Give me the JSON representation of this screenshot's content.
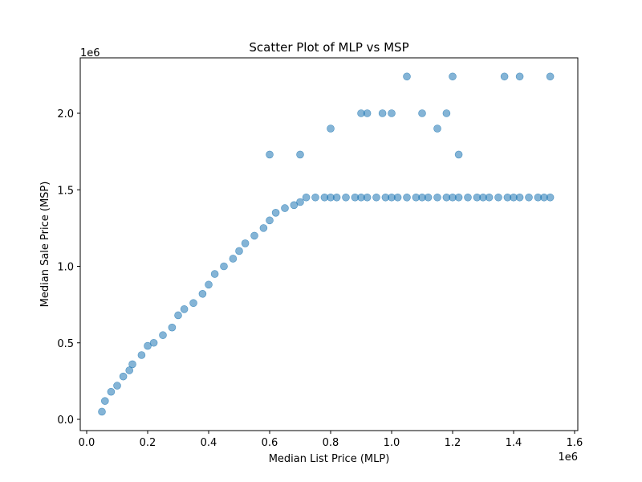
{
  "chart_data": {
    "type": "scatter",
    "title": "Scatter Plot of MLP vs MSP",
    "xlabel": "Median List Price (MLP)",
    "ylabel": "Median Sale Price (MSP)",
    "x_offset_label": "1e6",
    "y_offset_label": "1e6",
    "xlim": [
      0,
      1.6
    ],
    "ylim": [
      0,
      2.25
    ],
    "xticks": [
      0.0,
      0.2,
      0.4,
      0.6,
      0.8,
      1.0,
      1.2,
      1.4,
      1.6
    ],
    "xtick_labels": [
      "0.0",
      "0.2",
      "0.4",
      "0.6",
      "0.8",
      "1.0",
      "1.2",
      "1.4",
      "1.6"
    ],
    "yticks": [
      0.0,
      0.5,
      1.0,
      1.5,
      2.0
    ],
    "ytick_labels": [
      "0.0",
      "0.5",
      "1.0",
      "1.5",
      "2.0"
    ],
    "grid": false,
    "marker_color": "#1f77b4",
    "marker_alpha": 0.55,
    "series": [
      {
        "x": [
          0.05,
          0.06,
          0.08,
          0.1,
          0.12,
          0.14,
          0.15,
          0.18,
          0.2,
          0.22,
          0.25,
          0.28,
          0.3,
          0.32,
          0.35,
          0.38,
          0.4,
          0.42,
          0.45,
          0.48,
          0.5,
          0.52,
          0.55,
          0.58,
          0.6,
          0.62,
          0.65,
          0.68,
          0.7,
          0.72,
          0.75,
          0.78,
          0.8,
          0.82,
          0.85,
          0.88,
          0.9,
          0.92,
          0.95,
          0.98,
          1.0,
          1.02,
          1.05,
          1.08,
          1.1,
          1.12,
          1.15,
          1.18,
          1.2,
          1.22,
          1.25,
          1.28,
          1.3,
          1.32,
          1.35,
          1.38,
          1.4,
          1.42,
          1.45,
          1.48,
          1.5,
          1.52,
          0.92,
          0.97,
          1.05,
          1.1,
          1.15,
          1.18,
          1.2,
          1.22,
          1.37,
          1.42,
          1.52,
          0.6,
          0.7,
          0.8,
          0.9,
          1.0
        ],
        "y": [
          0.05,
          0.12,
          0.18,
          0.22,
          0.28,
          0.32,
          0.36,
          0.42,
          0.48,
          0.5,
          0.55,
          0.6,
          0.68,
          0.72,
          0.76,
          0.82,
          0.88,
          0.95,
          1.0,
          1.05,
          1.1,
          1.15,
          1.2,
          1.25,
          1.3,
          1.35,
          1.38,
          1.4,
          1.42,
          1.45,
          1.45,
          1.45,
          1.45,
          1.45,
          1.45,
          1.45,
          1.45,
          1.45,
          1.45,
          1.45,
          1.45,
          1.45,
          1.45,
          1.45,
          1.45,
          1.45,
          1.45,
          1.45,
          1.45,
          1.45,
          1.45,
          1.45,
          1.45,
          1.45,
          1.45,
          1.45,
          1.45,
          1.45,
          1.45,
          1.45,
          1.45,
          1.45,
          2.0,
          2.0,
          2.24,
          2.0,
          1.9,
          2.0,
          2.24,
          1.73,
          2.24,
          2.24,
          2.24,
          1.73,
          1.73,
          1.9,
          2.0,
          2.0
        ]
      }
    ]
  }
}
